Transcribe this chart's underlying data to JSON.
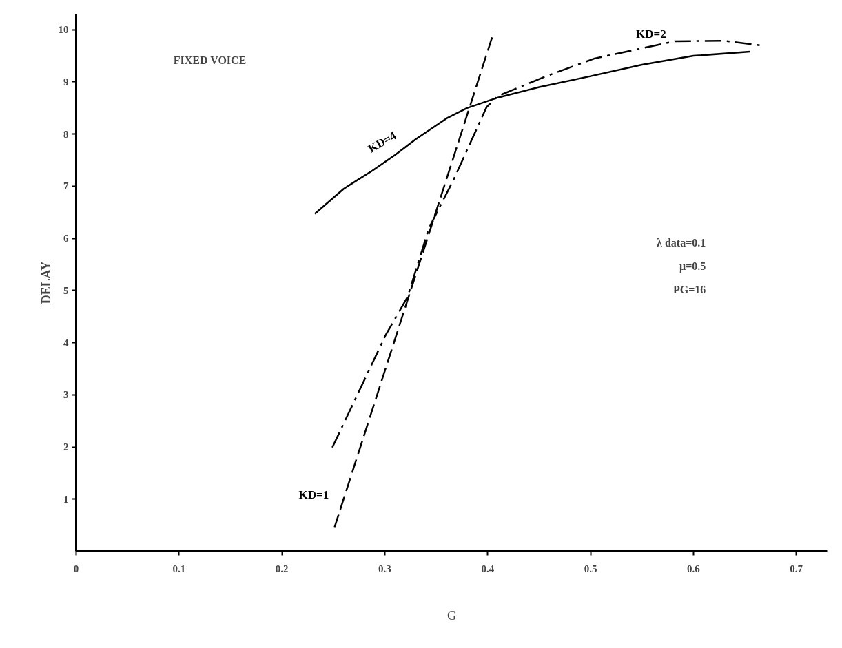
{
  "chart_data": {
    "type": "line",
    "xlabel": "G",
    "ylabel": "DELAY",
    "xlim": [
      0,
      0.73
    ],
    "ylim": [
      0,
      10.3
    ],
    "xticks": [
      0,
      0.1,
      0.2,
      0.3,
      0.4,
      0.5,
      0.6,
      0.7
    ],
    "yticks": [
      1,
      2,
      3,
      4,
      5,
      6,
      7,
      8,
      9,
      10
    ],
    "grid": false,
    "marker": "none",
    "series": [
      {
        "name": "KD=4",
        "color": "#000000",
        "line_style": "solid",
        "x": [
          0.232,
          0.26,
          0.288,
          0.31,
          0.33,
          0.36,
          0.38,
          0.41,
          0.45,
          0.5,
          0.55,
          0.6,
          0.655
        ],
        "values": [
          6.47,
          6.95,
          7.3,
          7.6,
          7.9,
          8.3,
          8.5,
          8.7,
          8.9,
          9.11,
          9.33,
          9.5,
          9.58
        ]
      },
      {
        "name": "KD=2",
        "color": "#000000",
        "line_style": "dashdot",
        "x": [
          0.249,
          0.301,
          0.322,
          0.343,
          0.367,
          0.399,
          0.41,
          0.457,
          0.504,
          0.582,
          0.629,
          0.665
        ],
        "values": [
          1.99,
          4.15,
          4.87,
          6.2,
          7.13,
          8.52,
          8.73,
          9.11,
          9.45,
          9.78,
          9.79,
          9.7
        ]
      },
      {
        "name": "KD=1",
        "color": "#000000",
        "line_style": "dashed",
        "x": [
          0.251,
          0.317,
          0.406
        ],
        "values": [
          0.45,
          4.5,
          9.96
        ]
      }
    ],
    "annotations": [
      "FIXED VOICE",
      "λ data=0.1",
      "μ=0.5",
      "PG=16"
    ]
  }
}
